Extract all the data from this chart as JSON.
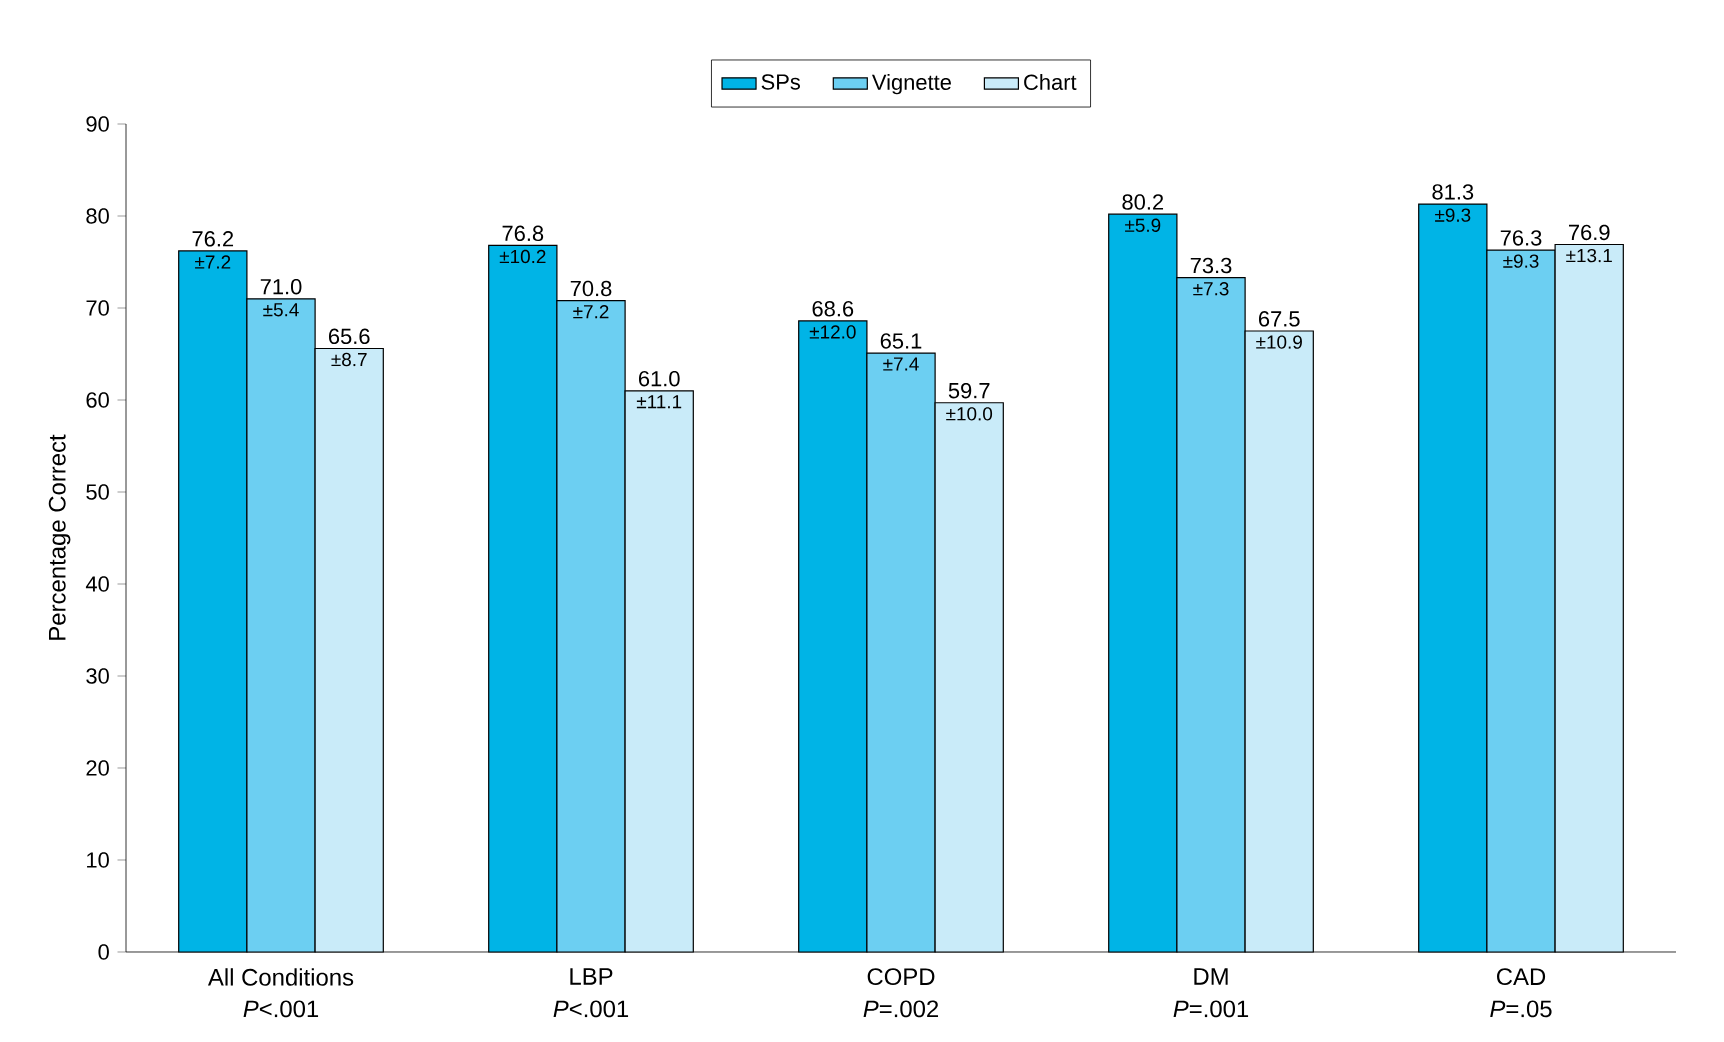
{
  "chart_data": {
    "type": "bar",
    "ylabel": "Percentage Correct",
    "categories": [
      "All Conditions",
      "LBP",
      "COPD",
      "DM",
      "CAD"
    ],
    "series": [
      {
        "name": "SPs",
        "color": "#00b4e6",
        "values": [
          76.2,
          76.8,
          68.6,
          80.2,
          81.3
        ],
        "value_labels": [
          "76.2",
          "76.8",
          "68.6",
          "80.2",
          "81.3"
        ]
      },
      {
        "name": "Vignette",
        "color": "#6ccff2",
        "values": [
          71.0,
          70.8,
          65.1,
          73.3,
          76.3
        ],
        "value_labels": [
          "71.0",
          "70.8",
          "65.1",
          "73.3",
          "76.3"
        ]
      },
      {
        "name": "Chart",
        "color": "#c9ebf9",
        "values": [
          65.6,
          61.0,
          59.7,
          67.5,
          76.9
        ],
        "value_labels": [
          "65.6",
          "61.0",
          "59.7",
          "67.5",
          "76.9"
        ]
      }
    ],
    "ylim": [
      0,
      90
    ],
    "yticks": [
      0,
      10,
      20,
      30,
      40,
      50,
      60,
      70,
      80,
      90
    ],
    "legend": "top",
    "grid": false,
    "annotations": [
      "±7.2",
      "±5.4",
      "±8.7",
      "±10.2",
      "±7.2",
      "±11.1",
      "±12.0",
      "±7.4",
      "±10.0",
      "±5.9",
      "±7.3",
      "±10.9",
      "±9.3",
      "±9.3",
      "±13.1",
      "*P*<.001",
      "*P*<.001",
      "*P*=.002",
      "*P*=.001",
      "*P*=.05"
    ]
  }
}
